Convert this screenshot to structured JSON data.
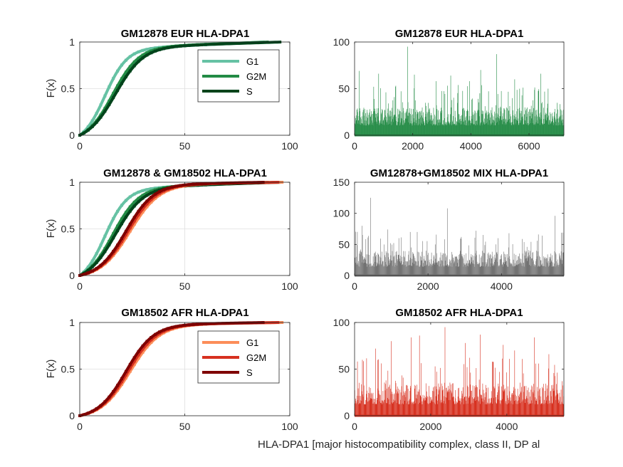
{
  "figure": {
    "xlabel": "HLA-DPA1 [major histocompatibility complex, class II, DP al"
  },
  "colors": {
    "eur_g1": "#66c2a4",
    "eur_g2m": "#238b45",
    "eur_s": "#00441b",
    "afr_g1": "#fc8d59",
    "afr_g2m": "#d7301f",
    "afr_s": "#7f0000",
    "mix_bar": "#737373",
    "grid": "#dfdfdf",
    "axis": "#262626"
  },
  "chart_data": [
    {
      "id": "cdf_eur",
      "type": "line",
      "title": "GM12878 EUR HLA-DPA1",
      "ylabel": "F(x)",
      "xlim": [
        0,
        100
      ],
      "ylim": [
        0,
        1
      ],
      "xticks": [
        "0",
        "50",
        "100"
      ],
      "yticks": [
        "0",
        "0.5",
        "1"
      ],
      "grid": true,
      "legend": "top-right",
      "series": [
        {
          "name": "G1",
          "color": "#66c2a4",
          "mean": 12.0,
          "spread": 5.2,
          "xmax": 88
        },
        {
          "name": "G2M",
          "color": "#238b45",
          "mean": 15.8,
          "spread": 6.2,
          "xmax": 90
        },
        {
          "name": "S",
          "color": "#00441b",
          "mean": 17.0,
          "spread": 6.6,
          "xmax": 96
        }
      ]
    },
    {
      "id": "hist_eur",
      "type": "bar",
      "title": "GM12878 EUR HLA-DPA1",
      "xlim": [
        0,
        7200
      ],
      "ylim": [
        0,
        100
      ],
      "xticks": [
        "0",
        "2000",
        "4000",
        "6000"
      ],
      "yticks": [
        "0",
        "50",
        "100"
      ],
      "color": "#238b45",
      "bar_count": 720,
      "typical_max": 30,
      "peaks": [
        [
          1820,
          95
        ],
        [
          4880,
          87
        ],
        [
          4330,
          70
        ],
        [
          150,
          69
        ],
        [
          820,
          66
        ],
        [
          2050,
          65
        ],
        [
          3300,
          64
        ],
        [
          6400,
          66
        ],
        [
          5500,
          60
        ],
        [
          2800,
          58
        ],
        [
          3950,
          58
        ],
        [
          650,
          52
        ],
        [
          1400,
          52
        ]
      ]
    },
    {
      "id": "cdf_mix",
      "type": "line",
      "title": "GM12878 & GM18502 HLA-DPA1",
      "ylabel": "F(x)",
      "xlim": [
        0,
        100
      ],
      "ylim": [
        0,
        1
      ],
      "xticks": [
        "0",
        "50",
        "100"
      ],
      "yticks": [
        "0",
        "0.5",
        "1"
      ],
      "grid": true,
      "series": [
        {
          "name": "G1",
          "color": "#66c2a4",
          "mean": 12.0,
          "spread": 5.2,
          "xmax": 88
        },
        {
          "name": "G2M",
          "color": "#238b45",
          "mean": 15.8,
          "spread": 6.2,
          "xmax": 90
        },
        {
          "name": "S",
          "color": "#00441b",
          "mean": 17.0,
          "spread": 6.6,
          "xmax": 96
        },
        {
          "name": "G1",
          "color": "#fc8d59",
          "mean": 24.0,
          "spread": 7.0,
          "xmax": 97
        },
        {
          "name": "G2M",
          "color": "#d7301f",
          "mean": 23.0,
          "spread": 6.8,
          "xmax": 95
        },
        {
          "name": "S",
          "color": "#7f0000",
          "mean": 22.0,
          "spread": 6.6,
          "xmax": 88
        }
      ]
    },
    {
      "id": "hist_mix",
      "type": "bar",
      "title": "GM12878+GM18502 MIX HLA-DPA1",
      "xlim": [
        0,
        5700
      ],
      "ylim": [
        0,
        150
      ],
      "xticks": [
        "0",
        "2000",
        "4000"
      ],
      "yticks": [
        "0",
        "50",
        "100",
        "150"
      ],
      "color": "#737373",
      "bar_count": 570,
      "typical_max": 40,
      "peaks": [
        [
          430,
          125
        ],
        [
          2520,
          108
        ],
        [
          5450,
          96
        ],
        [
          200,
          80
        ],
        [
          900,
          74
        ],
        [
          1700,
          70
        ],
        [
          3300,
          72
        ],
        [
          4200,
          68
        ],
        [
          5000,
          66
        ],
        [
          2900,
          62
        ],
        [
          1200,
          60
        ],
        [
          3900,
          60
        ]
      ]
    },
    {
      "id": "cdf_afr",
      "type": "line",
      "title": "GM18502 AFR HLA-DPA1",
      "ylabel": "F(x)",
      "xlim": [
        0,
        100
      ],
      "ylim": [
        0,
        1
      ],
      "xticks": [
        "0",
        "50",
        "100"
      ],
      "yticks": [
        "0",
        "0.5",
        "1"
      ],
      "grid": true,
      "legend": "top-right",
      "series": [
        {
          "name": "G1",
          "color": "#fc8d59",
          "mean": 24.0,
          "spread": 7.0,
          "xmax": 97
        },
        {
          "name": "G2M",
          "color": "#d7301f",
          "mean": 23.0,
          "spread": 6.8,
          "xmax": 95
        },
        {
          "name": "S",
          "color": "#7f0000",
          "mean": 22.0,
          "spread": 6.6,
          "xmax": 88
        }
      ]
    },
    {
      "id": "hist_afr",
      "type": "bar",
      "title": "GM18502 AFR HLA-DPA1",
      "xlim": [
        0,
        5500
      ],
      "ylim": [
        0,
        100
      ],
      "xticks": [
        "0",
        "2000",
        "4000"
      ],
      "yticks": [
        "0",
        "50",
        "100"
      ],
      "color": "#d7301f",
      "bar_count": 550,
      "typical_max": 35,
      "peaks": [
        [
          2370,
          95
        ],
        [
          3300,
          87
        ],
        [
          1700,
          86
        ],
        [
          1480,
          84
        ],
        [
          4720,
          84
        ],
        [
          960,
          80
        ],
        [
          2900,
          78
        ],
        [
          3900,
          76
        ],
        [
          550,
          72
        ],
        [
          200,
          60
        ],
        [
          4200,
          70
        ],
        [
          5100,
          66
        ]
      ]
    }
  ]
}
